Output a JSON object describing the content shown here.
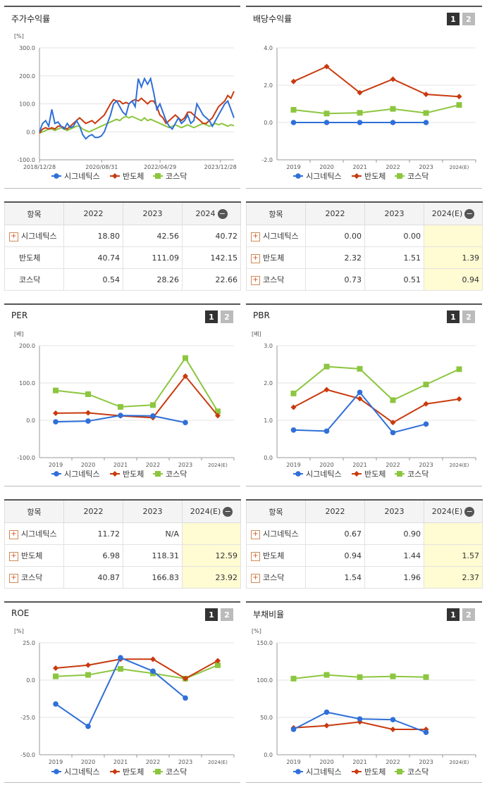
{
  "top_strip": "",
  "legend_labels": [
    "시그네틱스",
    "반도체",
    "코스닥"
  ],
  "colors": {
    "sig": "#2f6fd8",
    "semi": "#c83a0e",
    "kosdaq": "#8cc63f"
  },
  "charts": {
    "price": {
      "title": "주가수익률",
      "unit": "[%]",
      "type": "line",
      "xticks": [
        "2018/12/28",
        "2020/08/31",
        "2022/04/29",
        "2023/12/28"
      ],
      "ylabels": [
        "300.0",
        "200.0",
        "100.0",
        "0.0",
        "-100.0"
      ],
      "ylim": [
        -100,
        300
      ],
      "sig": [
        0,
        30,
        40,
        20,
        80,
        30,
        35,
        20,
        10,
        30,
        15,
        20,
        40,
        20,
        -10,
        -25,
        -15,
        -10,
        -20,
        -20,
        -15,
        0,
        30,
        60,
        100,
        110,
        90,
        70,
        60,
        100,
        110,
        90,
        190,
        160,
        190,
        170,
        190,
        140,
        80,
        100,
        70,
        40,
        20,
        10,
        30,
        50,
        30,
        40,
        60,
        30,
        40,
        100,
        80,
        60,
        50,
        40,
        20,
        40,
        60,
        80,
        100,
        110,
        80,
        50
      ],
      "semi": [
        -5,
        10,
        15,
        10,
        15,
        10,
        20,
        20,
        15,
        10,
        20,
        30,
        40,
        50,
        40,
        30,
        35,
        40,
        30,
        40,
        50,
        60,
        80,
        100,
        115,
        110,
        110,
        100,
        105,
        100,
        110,
        115,
        110,
        120,
        110,
        100,
        110,
        110,
        90,
        60,
        50,
        30,
        40,
        50,
        60,
        50,
        40,
        50,
        70,
        70,
        60,
        50,
        40,
        30,
        30,
        40,
        50,
        70,
        90,
        100,
        110,
        130,
        120,
        145
      ],
      "kosdaq": [
        -5,
        0,
        5,
        10,
        10,
        5,
        10,
        15,
        10,
        5,
        10,
        15,
        20,
        20,
        10,
        5,
        0,
        5,
        10,
        15,
        20,
        25,
        30,
        35,
        40,
        45,
        40,
        50,
        55,
        50,
        55,
        50,
        45,
        40,
        50,
        40,
        45,
        40,
        35,
        30,
        25,
        20,
        15,
        20,
        25,
        20,
        15,
        20,
        25,
        20,
        15,
        20,
        25,
        30,
        25,
        20,
        25,
        30,
        25,
        30,
        25,
        20,
        25,
        22
      ]
    },
    "dividend": {
      "title": "배당수익률",
      "unit": "",
      "type": "line",
      "xticks": [
        "2019",
        "2020",
        "2021",
        "2022",
        "2023",
        "2024(E)"
      ],
      "ylabels": [
        "4.0",
        "2.0",
        "0.0",
        "-2.0"
      ],
      "ylim": [
        -2,
        4
      ],
      "sig": [
        0.0,
        0.0,
        0.0,
        0.0,
        0.0,
        null
      ],
      "semi": [
        2.2,
        3.0,
        1.6,
        2.32,
        1.51,
        1.39
      ],
      "kosdaq": [
        0.68,
        0.48,
        0.52,
        0.73,
        0.51,
        0.94
      ]
    },
    "per": {
      "title": "PER",
      "unit": "[배]",
      "type": "line",
      "xticks": [
        "2019",
        "2020",
        "2021",
        "2022",
        "2023",
        "2024(E)"
      ],
      "ylabels": [
        "200.0",
        "100.0",
        "0.0",
        "-100.0"
      ],
      "ylim": [
        -100,
        200
      ],
      "sig": [
        -4,
        -2,
        13,
        11.72,
        -6,
        null
      ],
      "semi": [
        19,
        20,
        12,
        6.98,
        118.31,
        12.59
      ],
      "kosdaq": [
        80,
        70,
        36,
        40.87,
        166.83,
        23.92
      ]
    },
    "pbr": {
      "title": "PBR",
      "unit": "[배]",
      "type": "line",
      "xticks": [
        "2019",
        "2020",
        "2021",
        "2022",
        "2023",
        "2024(E)"
      ],
      "ylabels": [
        "3.0",
        "2.0",
        "1.0",
        "0.0"
      ],
      "ylim": [
        0,
        3
      ],
      "sig": [
        0.74,
        0.71,
        1.75,
        0.67,
        0.9,
        null
      ],
      "semi": [
        1.35,
        1.82,
        1.58,
        0.94,
        1.44,
        1.57
      ],
      "kosdaq": [
        1.72,
        2.44,
        2.38,
        1.54,
        1.96,
        2.37
      ]
    },
    "roe": {
      "title": "ROE",
      "unit": "[%]",
      "type": "line",
      "xticks": [
        "2019",
        "2020",
        "2021",
        "2022",
        "2023",
        "2024(E)"
      ],
      "ylabels": [
        "25.0",
        "0.0",
        "-25.0",
        "-50.0"
      ],
      "ylim": [
        -50,
        25
      ],
      "sig": [
        -16,
        -31,
        15,
        6,
        -12,
        null
      ],
      "semi": [
        8,
        10,
        14,
        14,
        1,
        13
      ],
      "kosdaq": [
        2.5,
        3.5,
        7.5,
        4.5,
        1,
        10
      ]
    },
    "debt": {
      "title": "부채비율",
      "unit": "[%]",
      "type": "line",
      "xticks": [
        "2019",
        "2020",
        "2021",
        "2022",
        "2023",
        "2024(E)"
      ],
      "ylabels": [
        "150.0",
        "100.0",
        "50.0",
        "0.0"
      ],
      "ylim": [
        0,
        150
      ],
      "sig": [
        34,
        57,
        48,
        47,
        30,
        null
      ],
      "semi": [
        36,
        39,
        44,
        34,
        34,
        null
      ],
      "kosdaq": [
        102,
        107,
        104,
        105,
        104,
        null
      ]
    }
  },
  "toggle_on": "1",
  "toggle_off": "2",
  "tables": {
    "price": {
      "h": [
        "항목",
        "2022",
        "2023",
        "2024"
      ],
      "rows": [
        [
          "시그네틱스",
          "18.80",
          "42.56",
          "40.72"
        ],
        [
          "반도체",
          "40.74",
          "111.09",
          "142.15"
        ],
        [
          "코스닥",
          "0.54",
          "28.26",
          "22.66"
        ]
      ]
    },
    "dividend": {
      "h": [
        "항목",
        "2022",
        "2023",
        "2024(E)"
      ],
      "rows": [
        [
          "시그네틱스",
          "0.00",
          "0.00",
          ""
        ],
        [
          "반도체",
          "2.32",
          "1.51",
          "1.39"
        ],
        [
          "코스닥",
          "0.73",
          "0.51",
          "0.94"
        ]
      ]
    },
    "per": {
      "h": [
        "항목",
        "2022",
        "2023",
        "2024(E)"
      ],
      "rows": [
        [
          "시그네틱스",
          "11.72",
          "N/A",
          ""
        ],
        [
          "반도체",
          "6.98",
          "118.31",
          "12.59"
        ],
        [
          "코스닥",
          "40.87",
          "166.83",
          "23.92"
        ]
      ]
    },
    "pbr": {
      "h": [
        "항목",
        "2022",
        "2023",
        "2024(E)"
      ],
      "rows": [
        [
          "시그네틱스",
          "0.67",
          "0.90",
          ""
        ],
        [
          "반도체",
          "0.94",
          "1.44",
          "1.57"
        ],
        [
          "코스닥",
          "1.54",
          "1.96",
          "2.37"
        ]
      ]
    }
  },
  "chart_data": [
    {
      "type": "line",
      "title": "주가수익률",
      "ylabel": "[%]",
      "ylim": [
        -100,
        300
      ],
      "categories": [
        "2018/12/28",
        "2020/08/31",
        "2022/04/29",
        "2023/12/28"
      ],
      "series": [
        {
          "name": "시그네틱스",
          "values": [
            0,
            20,
            190,
            50
          ]
        },
        {
          "name": "반도체",
          "values": [
            -5,
            60,
            110,
            145
          ]
        },
        {
          "name": "코스닥",
          "values": [
            -5,
            20,
            45,
            22
          ]
        }
      ]
    },
    {
      "type": "line",
      "title": "배당수익률",
      "ylim": [
        -2,
        4
      ],
      "categories": [
        "2019",
        "2020",
        "2021",
        "2022",
        "2023",
        "2024(E)"
      ],
      "series": [
        {
          "name": "시그네틱스",
          "values": [
            0,
            0,
            0,
            0,
            0,
            null
          ]
        },
        {
          "name": "반도체",
          "values": [
            2.2,
            3.0,
            1.6,
            2.32,
            1.51,
            1.39
          ]
        },
        {
          "name": "코스닥",
          "values": [
            0.68,
            0.48,
            0.52,
            0.73,
            0.51,
            0.94
          ]
        }
      ]
    },
    {
      "type": "line",
      "title": "PER",
      "ylabel": "[배]",
      "ylim": [
        -100,
        200
      ],
      "categories": [
        "2019",
        "2020",
        "2021",
        "2022",
        "2023",
        "2024(E)"
      ],
      "series": [
        {
          "name": "시그네틱스",
          "values": [
            -4,
            -2,
            13,
            11.72,
            -6,
            null
          ]
        },
        {
          "name": "반도체",
          "values": [
            19,
            20,
            12,
            6.98,
            118.31,
            12.59
          ]
        },
        {
          "name": "코스닥",
          "values": [
            80,
            70,
            36,
            40.87,
            166.83,
            23.92
          ]
        }
      ]
    },
    {
      "type": "line",
      "title": "PBR",
      "ylabel": "[배]",
      "ylim": [
        0,
        3
      ],
      "categories": [
        "2019",
        "2020",
        "2021",
        "2022",
        "2023",
        "2024(E)"
      ],
      "series": [
        {
          "name": "시그네틱스",
          "values": [
            0.74,
            0.71,
            1.75,
            0.67,
            0.9,
            null
          ]
        },
        {
          "name": "반도체",
          "values": [
            1.35,
            1.82,
            1.58,
            0.94,
            1.44,
            1.57
          ]
        },
        {
          "name": "코스닥",
          "values": [
            1.72,
            2.44,
            2.38,
            1.54,
            1.96,
            2.37
          ]
        }
      ]
    },
    {
      "type": "line",
      "title": "ROE",
      "ylabel": "[%]",
      "ylim": [
        -50,
        25
      ],
      "categories": [
        "2019",
        "2020",
        "2021",
        "2022",
        "2023",
        "2024(E)"
      ],
      "series": [
        {
          "name": "시그네틱스",
          "values": [
            -16,
            -31,
            15,
            6,
            -12,
            null
          ]
        },
        {
          "name": "반도체",
          "values": [
            8,
            10,
            14,
            14,
            1,
            13
          ]
        },
        {
          "name": "코스닥",
          "values": [
            2.5,
            3.5,
            7.5,
            4.5,
            1,
            10
          ]
        }
      ]
    },
    {
      "type": "line",
      "title": "부채비율",
      "ylabel": "[%]",
      "ylim": [
        0,
        150
      ],
      "categories": [
        "2019",
        "2020",
        "2021",
        "2022",
        "2023",
        "2024(E)"
      ],
      "series": [
        {
          "name": "시그네틱스",
          "values": [
            34,
            57,
            48,
            47,
            30,
            null
          ]
        },
        {
          "name": "반도체",
          "values": [
            36,
            39,
            44,
            34,
            34,
            null
          ]
        },
        {
          "name": "코스닥",
          "values": [
            102,
            107,
            104,
            105,
            104,
            null
          ]
        }
      ]
    }
  ]
}
